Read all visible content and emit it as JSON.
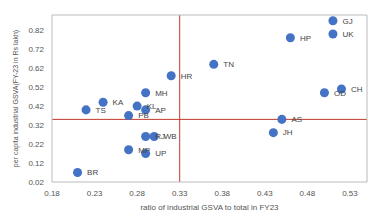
{
  "chart_data": {
    "type": "scatter",
    "x_label": "ratio of industrial GSVA to total in FY23",
    "y_label": "per capita industrial GSVA(FY-23 in Rs lakh)",
    "labels": [
      "GJ",
      "UK",
      "HP",
      "TN",
      "HR",
      "CH",
      "OD",
      "MH",
      "KA",
      "KL",
      "TS",
      "AP",
      "PB",
      "AS",
      "JH",
      "RJ",
      "WB",
      "MP",
      "UP",
      "BR"
    ],
    "x": [
      0.51,
      0.51,
      0.46,
      0.37,
      0.32,
      0.52,
      0.5,
      0.29,
      0.24,
      0.28,
      0.22,
      0.29,
      0.27,
      0.45,
      0.44,
      0.29,
      0.3,
      0.27,
      0.29,
      0.21
    ],
    "values": [
      0.87,
      0.8,
      0.78,
      0.64,
      0.58,
      0.51,
      0.49,
      0.49,
      0.44,
      0.42,
      0.4,
      0.4,
      0.37,
      0.35,
      0.28,
      0.26,
      0.26,
      0.19,
      0.17,
      0.07
    ],
    "color": "#4472c4",
    "marker": "circle",
    "xlim": [
      0.18,
      0.55
    ],
    "xticks": [
      0.18,
      0.23,
      0.28,
      0.33,
      0.38,
      0.43,
      0.48,
      0.53
    ],
    "ylim": [
      0.02,
      0.9
    ],
    "yticks": [
      0.02,
      0.12,
      0.22,
      0.32,
      0.42,
      0.52,
      0.62,
      0.72,
      0.82
    ],
    "x_reference": 0.33,
    "y_reference": 0.35,
    "reference_color": "#c0392b",
    "grid": false
  }
}
